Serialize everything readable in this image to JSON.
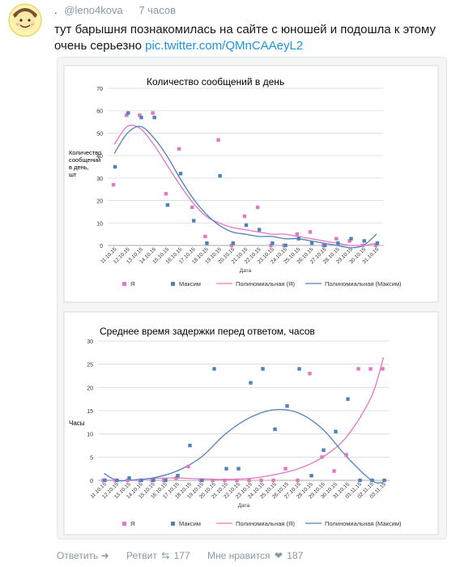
{
  "tweet": {
    "name": ".",
    "handle": "@leno4kova",
    "time": "7 часов",
    "text": "тут барышня познакомилась на сайте с юношей и подошла к этому очень серьезно ",
    "link": "pic.twitter.com/QMnCAAeyL2"
  },
  "actions": {
    "reply": "Ответить",
    "retweet": "Ретвит",
    "retweet_count": "177",
    "like": "Мне нравится",
    "like_count": "187"
  },
  "colors": {
    "ya": "#e377c2",
    "maxim": "#4f81bd",
    "text": "#292f33",
    "muted": "#8899a6",
    "link": "#1b95e0"
  },
  "chart_data": [
    {
      "type": "scatter",
      "title": "Количество сообщений в день",
      "ylabel": "Количество сообщений в день, шт",
      "xlabel": "Дата",
      "ylim": [
        0,
        70
      ],
      "yticks": [
        0,
        10,
        20,
        30,
        40,
        50,
        60,
        70
      ],
      "grid": true,
      "legend_position": "bottom",
      "categories": [
        "11.10.15",
        "12.10.15",
        "13.10.15",
        "14.10.15",
        "15.10.15",
        "16.10.15",
        "17.10.15",
        "18.10.15",
        "19.10.15",
        "20.10.15",
        "21.10.15",
        "22.10.15",
        "23.10.15",
        "24.10.15",
        "25.10.15",
        "26.10.15",
        "27.10.15",
        "28.10.15",
        "29.10.15",
        "30.10.15",
        "31.10.15"
      ],
      "series": [
        {
          "name": "Я",
          "values": [
            27,
            58,
            58,
            59,
            23,
            43,
            17,
            4,
            47,
            0,
            13,
            17,
            0,
            0,
            5,
            6,
            0,
            3,
            2,
            0,
            0
          ]
        },
        {
          "name": "Максим",
          "values": [
            35,
            59,
            57,
            57,
            18,
            32,
            11,
            1,
            31,
            1,
            9,
            7,
            1,
            0,
            3,
            1,
            0,
            1,
            3,
            2,
            1
          ]
        }
      ],
      "trendlines": [
        {
          "name": "Полиномиальная (Я)",
          "x": [
            0,
            1,
            2,
            3,
            4,
            5,
            6,
            7,
            8,
            9,
            10,
            11,
            12,
            13,
            14,
            15,
            16,
            17,
            18,
            19,
            20
          ],
          "y": [
            45,
            53,
            52,
            45,
            36,
            27,
            19,
            13,
            10,
            8,
            7,
            6,
            5,
            5,
            4,
            3,
            2,
            1,
            0,
            0,
            1
          ]
        },
        {
          "name": "Полиномиальная (Максим)",
          "x": [
            0,
            1,
            2,
            3,
            4,
            5,
            6,
            7,
            8,
            9,
            10,
            11,
            12,
            13,
            14,
            15,
            16,
            17,
            18,
            19,
            20
          ],
          "y": [
            41,
            50,
            53,
            48,
            40,
            30,
            21,
            14,
            9,
            6,
            5,
            4,
            4,
            3,
            3,
            2,
            1,
            0,
            -1,
            0,
            5
          ]
        }
      ]
    },
    {
      "type": "scatter",
      "title": "Среднее время задержки перед ответом, часов",
      "ylabel": "Часы",
      "xlabel": "Дата",
      "ylim": [
        0,
        30
      ],
      "yticks": [
        0,
        5,
        10,
        15,
        20,
        25,
        30
      ],
      "grid": true,
      "legend_position": "bottom",
      "categories": [
        "11.10.15",
        "12.10.15",
        "13.10.15",
        "14.10.15",
        "15.10.15",
        "16.10.15",
        "17.10.15",
        "18.10.15",
        "19.10.15",
        "20.10.15",
        "21.10.15",
        "22.10.15",
        "23.10.15",
        "24.10.15",
        "25.10.15",
        "26.10.15",
        "27.10.15",
        "28.10.15",
        "29.10.15",
        "30.10.15",
        "31.10.15",
        "01.11.15",
        "02.11.15",
        "03.11.15"
      ],
      "series": [
        {
          "name": "Я",
          "values": [
            0,
            0,
            0,
            0,
            0,
            0,
            0.5,
            3,
            0,
            0,
            0,
            0,
            0,
            0,
            0,
            2.5,
            0,
            23,
            5,
            2,
            5.5,
            24,
            24,
            24
          ]
        },
        {
          "name": "Максим",
          "values": [
            0,
            0,
            0.5,
            0,
            0,
            0,
            1,
            7.5,
            0,
            24,
            2.5,
            2.5,
            21,
            24,
            11,
            16,
            24,
            1,
            6.5,
            10.5,
            17.5,
            0,
            0,
            0
          ]
        }
      ],
      "trendlines": [
        {
          "name": "Полиномиальная (Я)",
          "x": [
            0,
            2,
            4,
            6,
            8,
            10,
            12,
            14,
            16,
            18,
            20,
            22,
            23
          ],
          "y": [
            0,
            0,
            0.4,
            0.5,
            0.3,
            0.2,
            0.4,
            1.2,
            2.5,
            5,
            9.5,
            18,
            26.5
          ]
        },
        {
          "name": "Полиномиальная (Максим)",
          "x": [
            0,
            1,
            2,
            4,
            6,
            8,
            10,
            12,
            14,
            16,
            18,
            20,
            22,
            23
          ],
          "y": [
            1.5,
            0,
            0,
            0.5,
            2,
            5,
            10,
            13.5,
            15.2,
            14.5,
            11,
            5,
            0,
            -0.5
          ]
        }
      ]
    }
  ]
}
